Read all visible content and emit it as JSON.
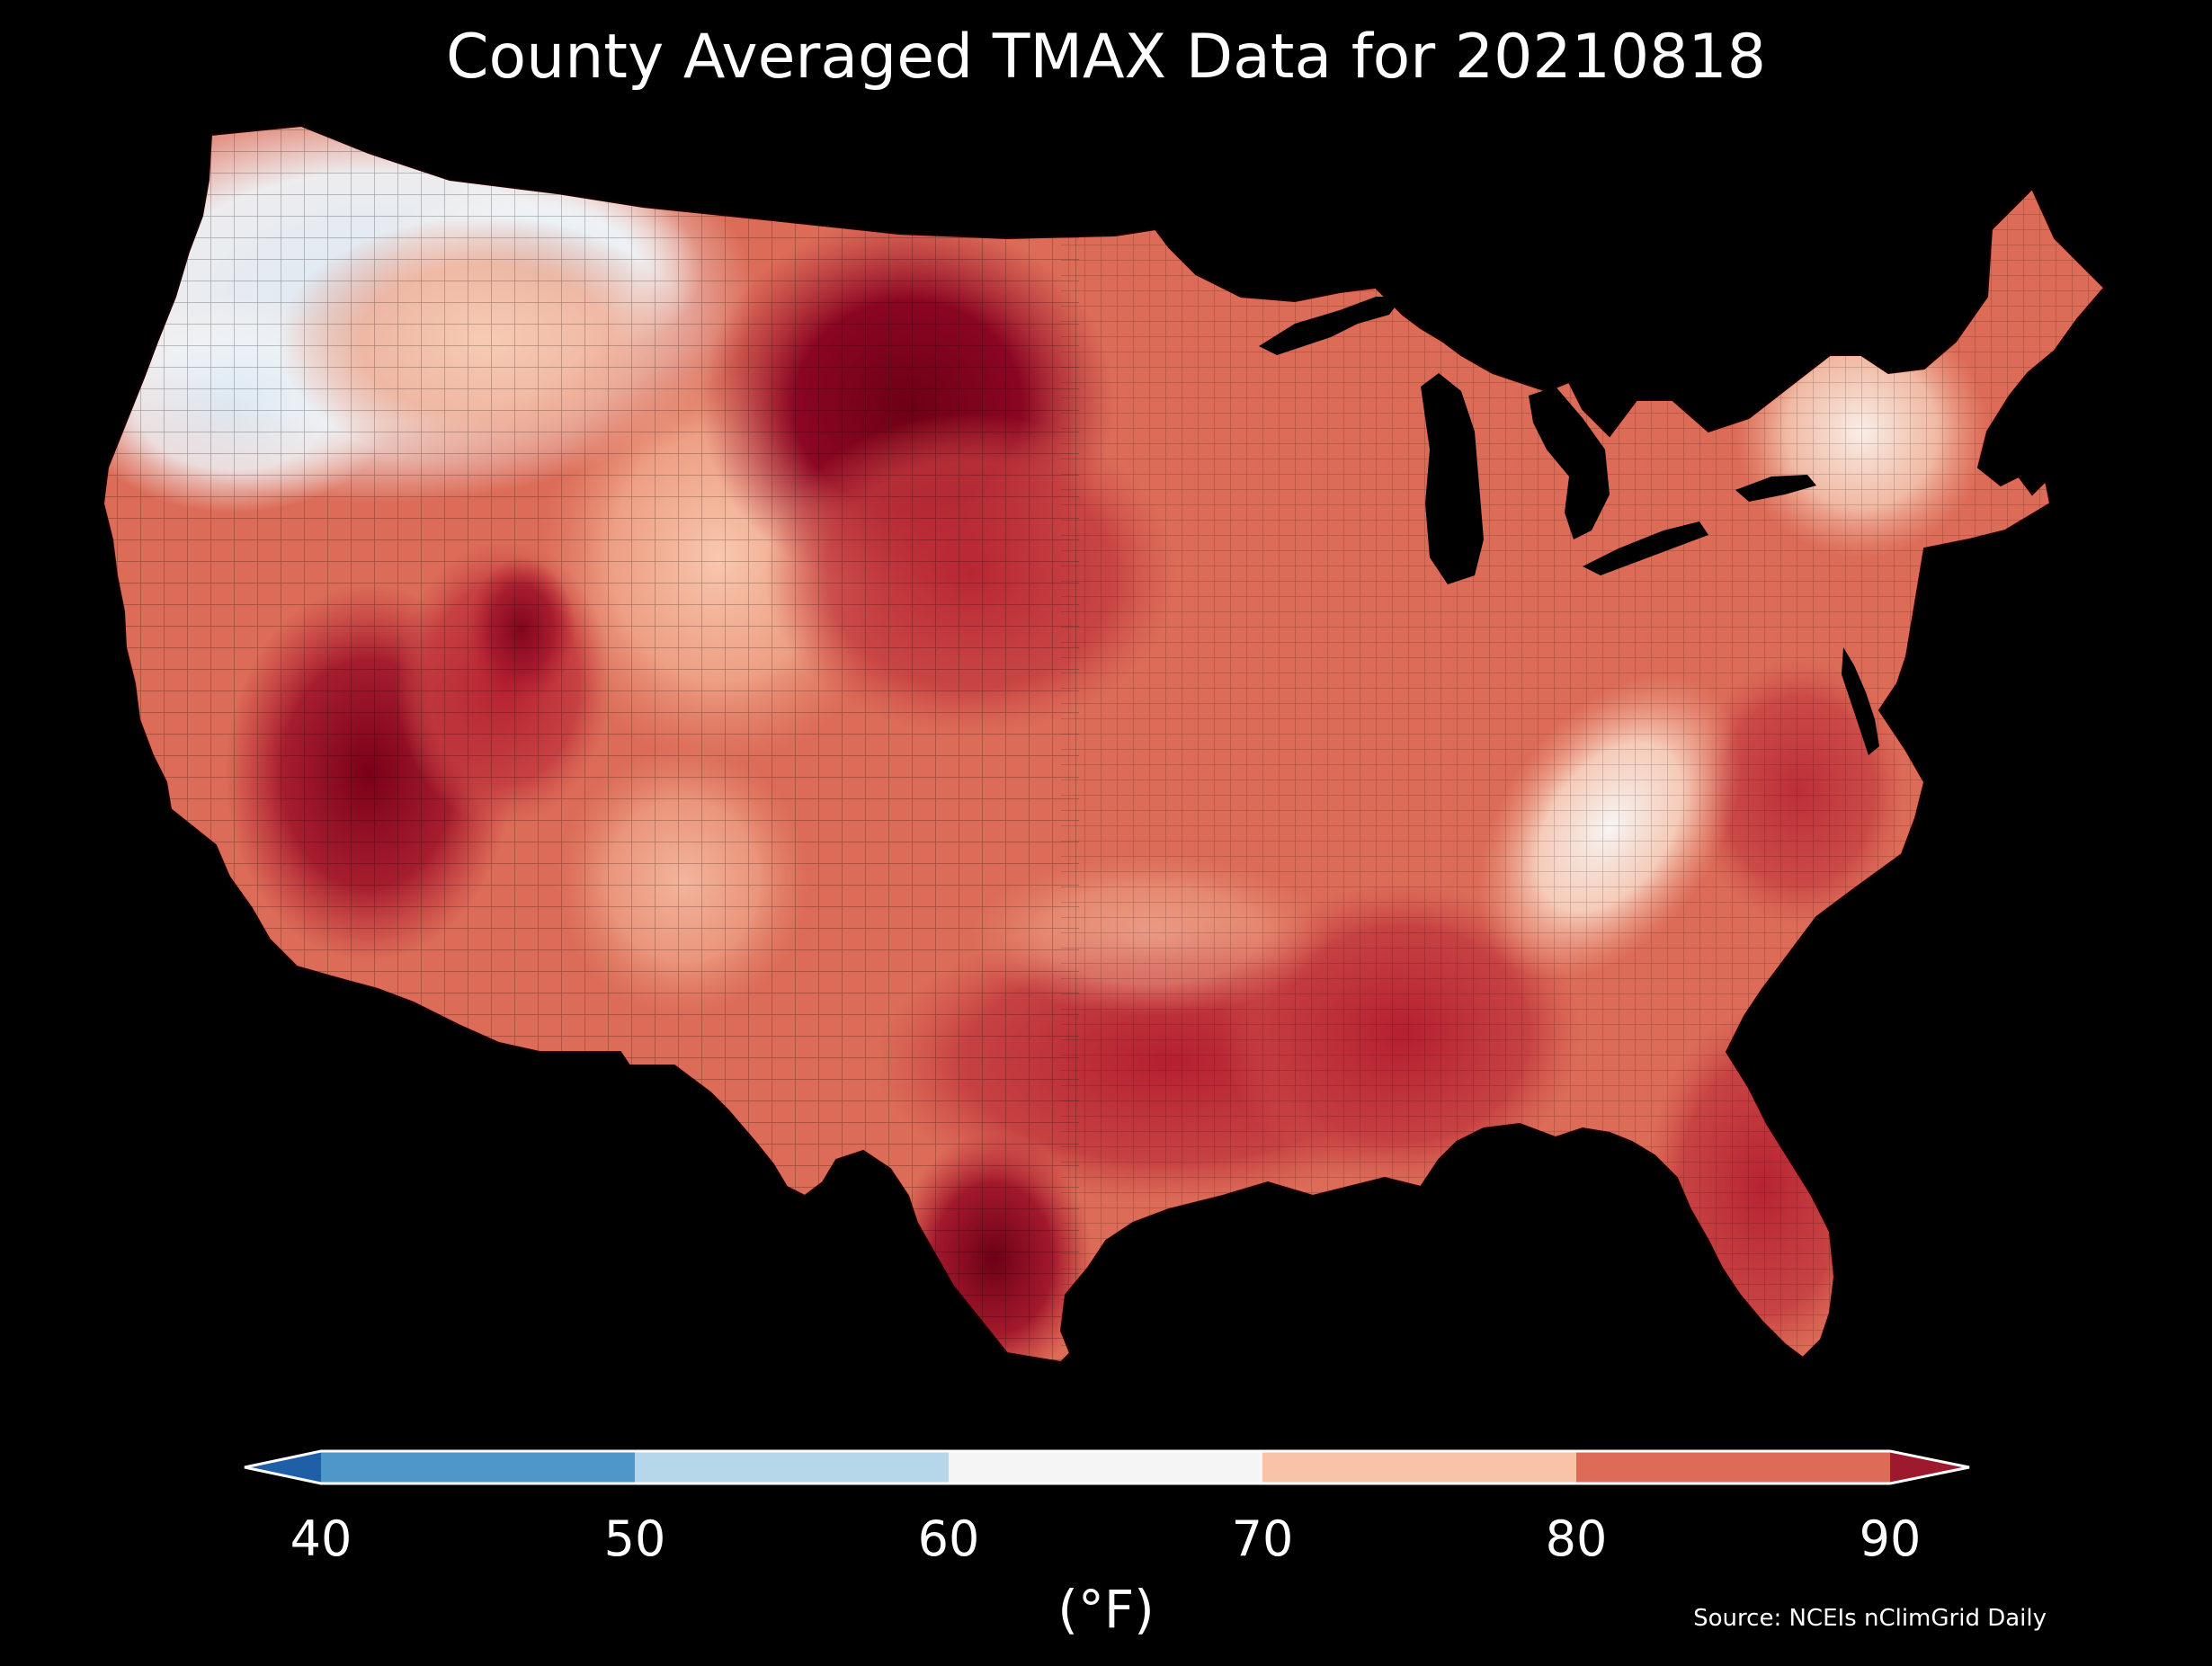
{
  "title": "County Averaged TMAX Data for 20210818",
  "colorbar": {
    "ticks": [
      "40",
      "50",
      "60",
      "70",
      "80",
      "90"
    ],
    "unit_label": "(°F)",
    "bins": [
      {
        "range": "<40",
        "color": "#1f5fa8"
      },
      {
        "range": "40-50",
        "color": "#4d98c9"
      },
      {
        "range": "50-60",
        "color": "#b6d7e9"
      },
      {
        "range": "60-70",
        "color": "#f5f5f5"
      },
      {
        "range": "70-80",
        "color": "#f8c3a6"
      },
      {
        "range": "80-90",
        "color": "#dc6c58"
      },
      {
        "range": ">90",
        "color": "#9d1a2e"
      }
    ]
  },
  "source": "Source: NCEIs nClimGrid Daily",
  "map": {
    "region": "Contiguous United States",
    "variable": "County averaged maximum temperature",
    "unit": "°F",
    "colors": {
      "coldest": "#d9e8f4",
      "cool": "#f3f3f3",
      "mild": "#f8c3a6",
      "warm": "#dc6c58",
      "hot": "#b51f30",
      "hottest": "#730016",
      "background": "#000000"
    }
  }
}
